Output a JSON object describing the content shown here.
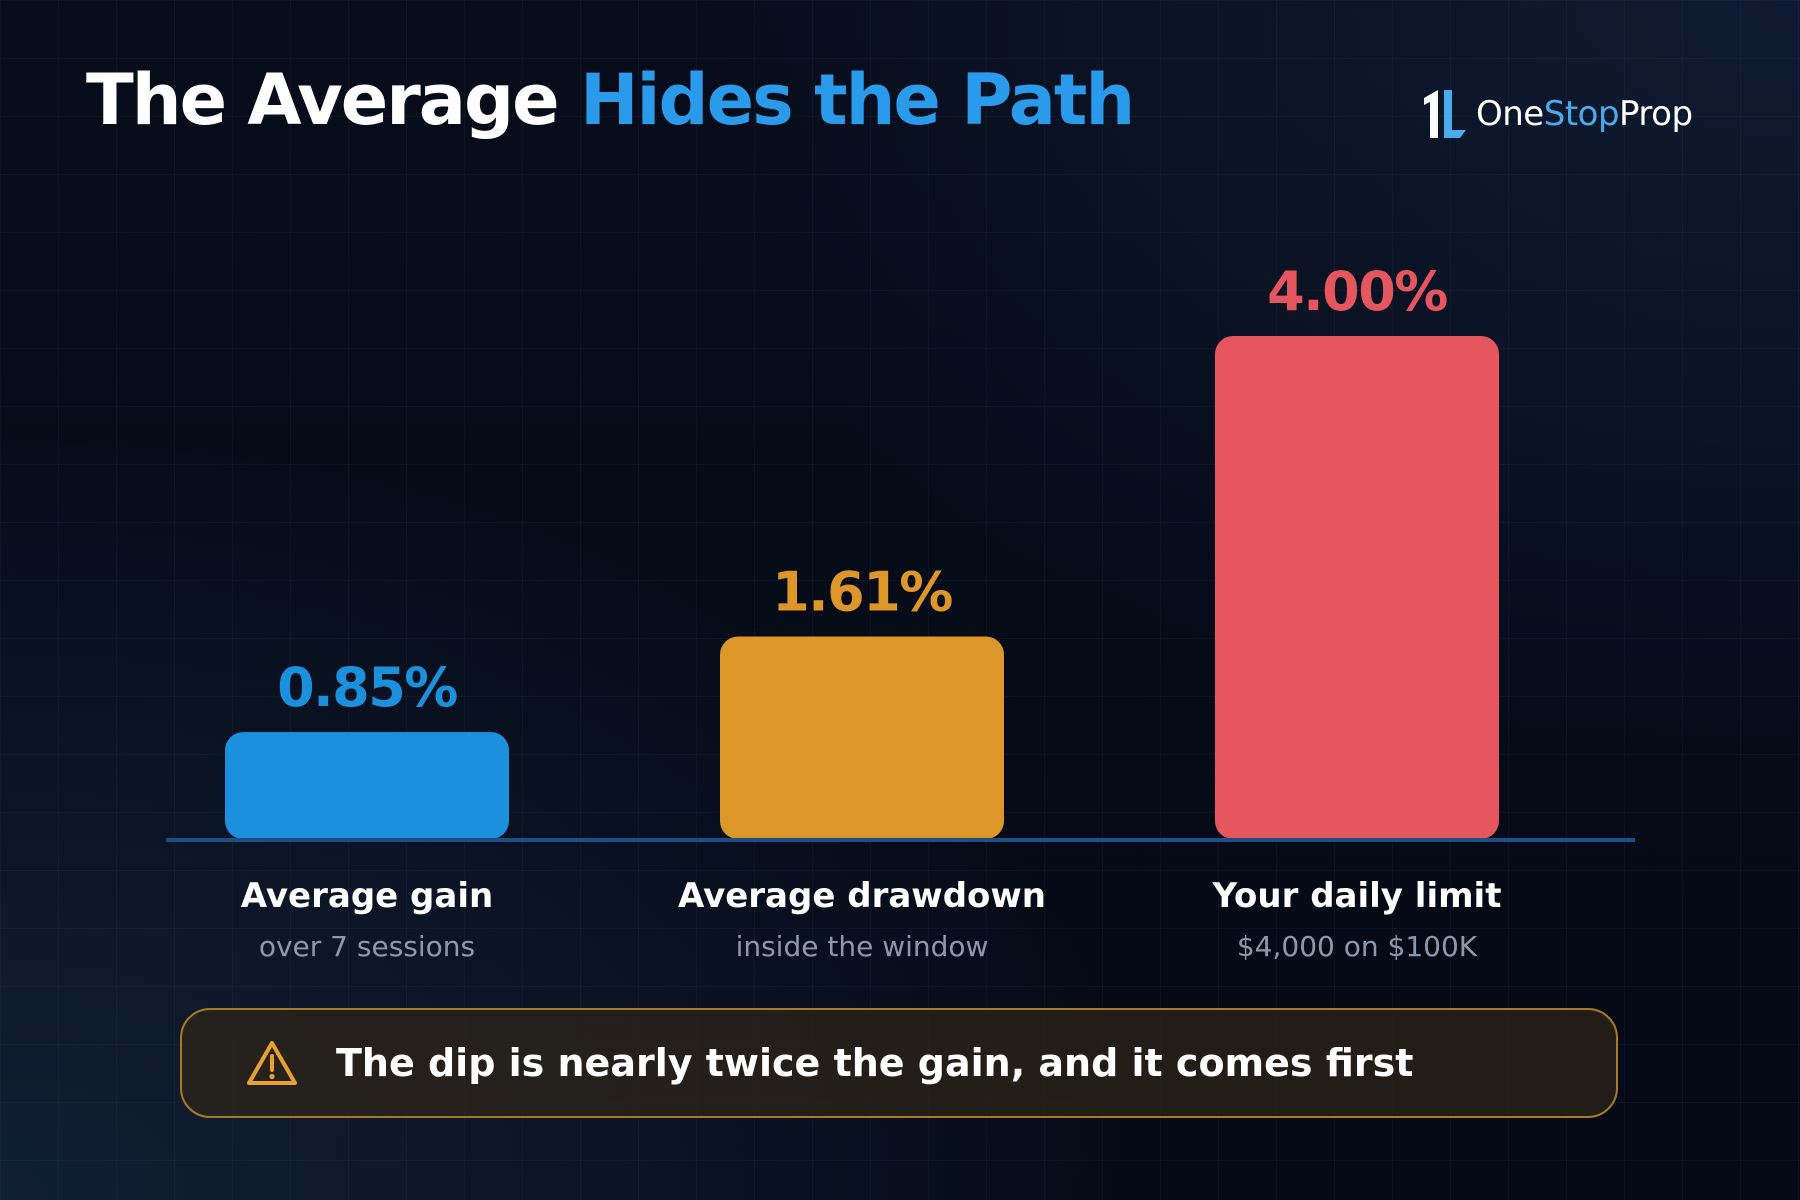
{
  "title": {
    "prefix": "The Average ",
    "highlight": "Hides the Path"
  },
  "brand": {
    "mark": "1L",
    "name_part1": "One",
    "name_part2": "Stop",
    "name_part3": "Prop"
  },
  "chart_data": {
    "type": "bar",
    "categories": [
      "Average gain",
      "Average drawdown",
      "Your daily limit"
    ],
    "subtitles": [
      "over 7 sessions",
      "inside the window",
      "$4,000 on $100K"
    ],
    "values": [
      0.85,
      1.61,
      4.0
    ],
    "value_labels": [
      "0.85%",
      "1.61%",
      "4.00%"
    ],
    "colors": [
      "#1b91de",
      "#dd9628",
      "#e5565e"
    ],
    "ylim": [
      0,
      4.0
    ],
    "grid": false,
    "legend": "none"
  },
  "callout": {
    "icon": "warning-triangle-icon",
    "text": "The dip is nearly twice the gain, and it comes first"
  },
  "colors": {
    "background": "#060b18",
    "accent": "#2a9bea",
    "baseline": "#1d4f84",
    "callout_border": "#a87a22"
  }
}
